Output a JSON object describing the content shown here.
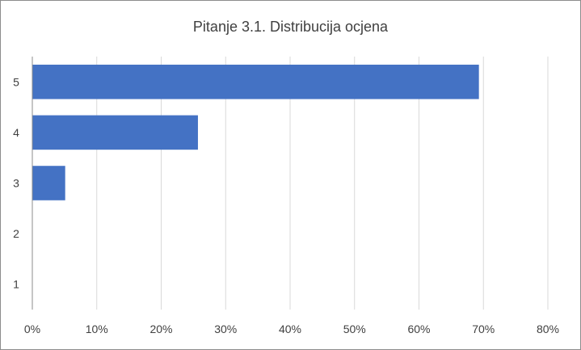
{
  "chart_data": {
    "type": "bar",
    "orientation": "horizontal",
    "title": "Pitanje 3.1. Distribucija ocjena",
    "categories": [
      "5",
      "4",
      "3",
      "2",
      "1"
    ],
    "values": [
      69.3,
      25.7,
      5.1,
      0,
      0
    ],
    "x_ticks": [
      "0%",
      "10%",
      "20%",
      "30%",
      "40%",
      "50%",
      "60%",
      "70%",
      "80%"
    ],
    "xlim": [
      0,
      80
    ],
    "grid": true,
    "legend": "none",
    "bar_color": "#4472c4"
  }
}
